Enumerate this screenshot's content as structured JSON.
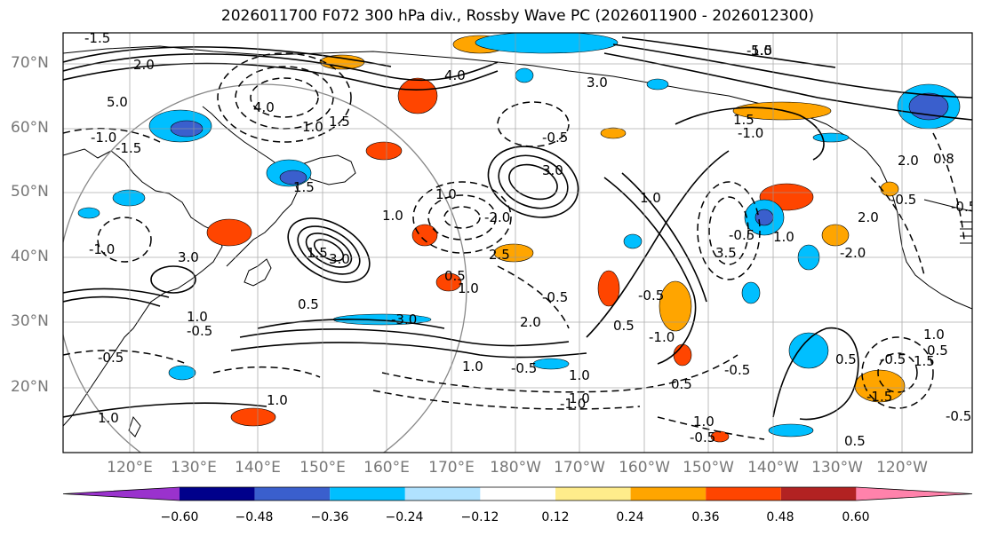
{
  "title": "2026011700 F072 300 hPa div., Rossby Wave PC (2026011900 - 2026012300)",
  "lat_labels": [
    "70°N",
    "60°N",
    "50°N",
    "40°N",
    "30°N",
    "20°N"
  ],
  "lon_labels": [
    "120°E",
    "130°E",
    "140°E",
    "150°E",
    "160°E",
    "170°E",
    "180°W",
    "170°W",
    "160°W",
    "150°W",
    "140°W",
    "130°W",
    "120°W"
  ],
  "colorbar": {
    "ticks": [
      "−0.60",
      "−0.48",
      "−0.36",
      "−0.24",
      "−0.12",
      "0.12",
      "0.24",
      "0.36",
      "0.48",
      "0.60"
    ],
    "colors": [
      "#9a32cd",
      "#00008b",
      "#3a5fcd",
      "#00bfff",
      "#b0e2ff",
      "#ffffff",
      "#ffec8b",
      "#ffa500",
      "#ff4500",
      "#b22222",
      "#ff82ab"
    ]
  },
  "contour_labels": [
    "-1.5",
    "5.0",
    "-1.0",
    "2.0",
    "1.0",
    "1.5",
    "1.0",
    "0.5",
    "4.0",
    "1.5",
    "-3.0",
    "3.0",
    "1.0",
    "-1.0",
    "1.0",
    "3.0",
    "-0.5",
    "-1.5",
    "-0.5",
    "1.5",
    "4.0",
    "1.0",
    "-2.0",
    "-0.5",
    "1.0",
    "3.0",
    "-0.5",
    "2.0",
    "1.0",
    "0.5",
    "2.5",
    "3.0",
    "1.0",
    "-1.5",
    "1.5",
    "-1.0",
    "1.0",
    "-0.5",
    "0.5",
    "0.5",
    "-1.0",
    "3.5",
    "5.0",
    "0.8",
    "-0.5",
    "2.0",
    "-0.5",
    "-2.0",
    "2.0",
    "-1.5",
    "-0.5",
    "0.5",
    "-0.5",
    "1.0",
    "1.5",
    "0.5",
    "-0.5",
    "1.0",
    "-1.0",
    "1.0",
    "1.0",
    "-0.5",
    "-0.5",
    "1.0",
    "-0.5",
    "0.5"
  ]
}
